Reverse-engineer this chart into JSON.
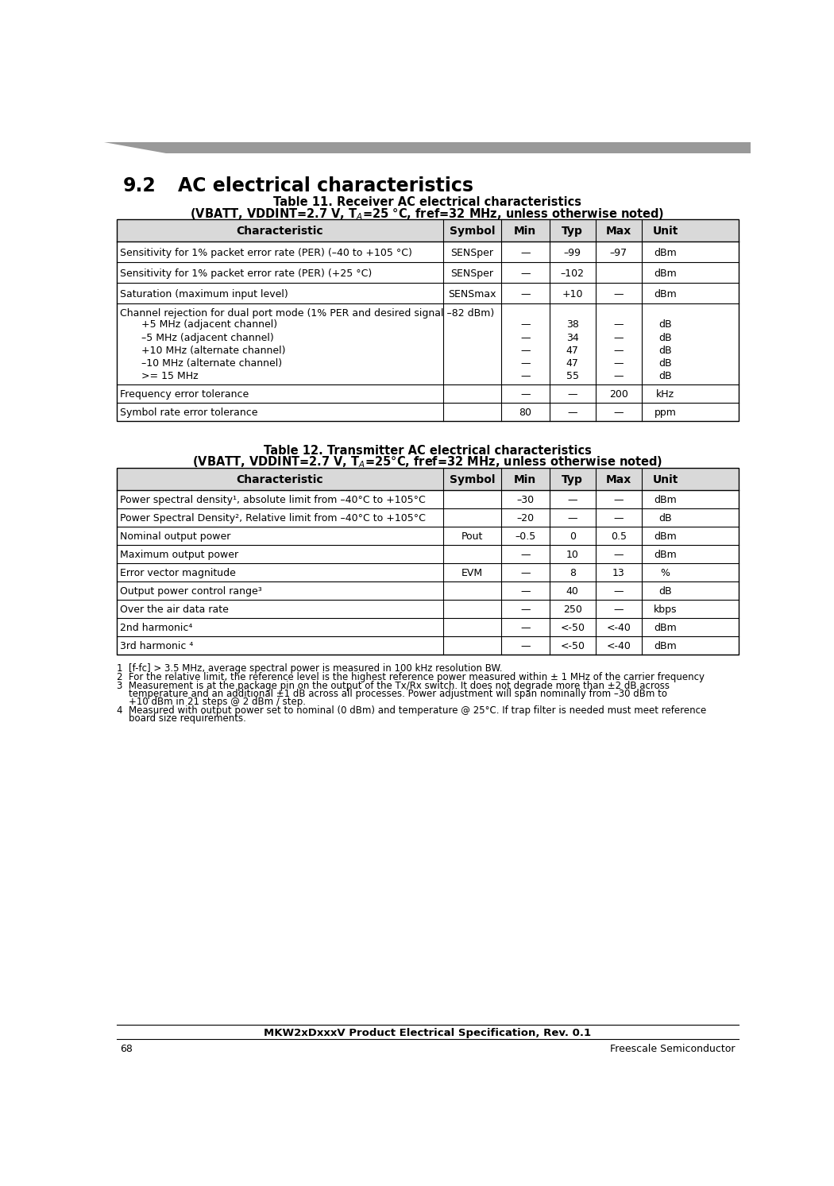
{
  "page_title": "MKW2xDxxxV Product Electrical Specification, Rev. 0.1",
  "page_number": "68",
  "page_company": "Freescale Semiconductor",
  "header_bg": "#d9d9d9",
  "top_bar_color": "#999999",
  "t1_title1": "Table 11. Receiver AC electrical characteristics",
  "t1_title2": "(VBATT, VDDINT=2.7 V, T$_A$=25 °C, fref=32 MHz, unless otherwise noted)",
  "t2_title1": "Table 12. Transmitter AC electrical characteristics",
  "t2_title2": "(VBATT, VDDINT=2.7 V, T$_A$=25°C, fref=32 MHz, unless otherwise noted)",
  "section_num": "9.2",
  "section_title": "AC electrical characteristics",
  "footnote1": "1  [f-fc] > 3.5 MHz, average spectral power is measured in 100 kHz resolution BW.",
  "footnote2": "2  For the relative limit, the reference level is the highest reference power measured within ± 1 MHz of the carrier frequency",
  "footnote3a": "3  Measurement is at the package pin on the output of the Tx/Rx switch. It does not degrade more than ±2 dB across",
  "footnote3b": "    temperature and an additional ±1 dB across all processes. Power adjustment will span nominally from –30 dBm to",
  "footnote3c": "    +10 dBm in 21 steps @ 2 dBm / step.",
  "footnote4a": "4  Measured with output power set to nominal (0 dBm) and temperature @ 25°C. If trap filter is needed must meet reference",
  "footnote4b": "    board size requirements.",
  "t1_headers": [
    "Characteristic",
    "Symbol",
    "Min",
    "Typ",
    "Max",
    "Unit"
  ],
  "t1_rows": [
    [
      "Sensitivity for 1% packet error rate (PER) (–40 to +105 °C)",
      "SENSper",
      "—",
      "–99",
      "–97",
      "dBm"
    ],
    [
      "Sensitivity for 1% packet error rate (PER) (+25 °C)",
      "SENSper",
      "—",
      "–102",
      "",
      "dBm"
    ],
    [
      "Saturation (maximum input level)",
      "SENSmax",
      "—",
      "+10",
      "—",
      "dBm"
    ]
  ],
  "t1_channel_header": "Channel rejection for dual port mode (1% PER and desired signal –82 dBm)",
  "t1_channel_rows": [
    [
      "+5 MHz (adjacent channel)",
      "—",
      "38",
      "—",
      "dB"
    ],
    [
      "–5 MHz (adjacent channel)",
      "—",
      "34",
      "—",
      "dB"
    ],
    [
      "+10 MHz (alternate channel)",
      "—",
      "47",
      "—",
      "dB"
    ],
    [
      "–10 MHz (alternate channel)",
      "—",
      "47",
      "—",
      "dB"
    ],
    [
      ">= 15 MHz",
      "—",
      "55",
      "—",
      "dB"
    ]
  ],
  "t1_freq_row": [
    "Frequency error tolerance",
    "",
    "—",
    "—",
    "200",
    "kHz"
  ],
  "t1_sym_row": [
    "Symbol rate error tolerance",
    "",
    "80",
    "—",
    "—",
    "ppm"
  ],
  "t2_headers": [
    "Characteristic",
    "Symbol",
    "Min",
    "Typ",
    "Max",
    "Unit"
  ],
  "t2_rows": [
    [
      "Power spectral density¹, absolute limit from –40°C to +105°C",
      "",
      "–30",
      "—",
      "—",
      "dBm"
    ],
    [
      "Power Spectral Density², Relative limit from –40°C to +105°C",
      "",
      "–20",
      "—",
      "—",
      "dB"
    ],
    [
      "Nominal output power",
      "Pout",
      "–0.5",
      "0",
      "0.5",
      "dBm"
    ],
    [
      "Maximum output power",
      "",
      "—",
      "10",
      "—",
      "dBm"
    ],
    [
      "Error vector magnitude",
      "EVM",
      "—",
      "8",
      "13",
      "%"
    ],
    [
      "Output power control range³",
      "",
      "—",
      "40",
      "—",
      "dB"
    ],
    [
      "Over the air data rate",
      "",
      "—",
      "250",
      "—",
      "kbps"
    ],
    [
      "2nd harmonic⁴",
      "",
      "—",
      "<-50",
      "<-40",
      "dBm"
    ],
    [
      "3rd harmonic ⁴",
      "",
      "—",
      "<-50",
      "<-40",
      "dBm"
    ]
  ]
}
